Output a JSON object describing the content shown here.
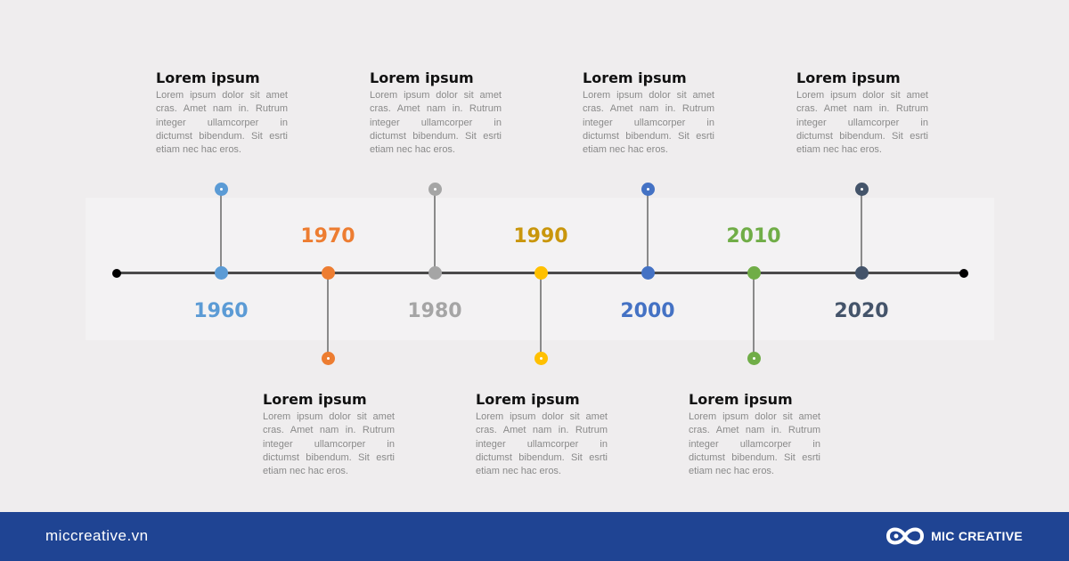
{
  "timeline": {
    "events": [
      {
        "year": "1960",
        "color": "#5b9bd5",
        "title": "Lorem ipsum",
        "text": "Lorem ipsum dolor sit amet cras. Amet nam in. Rutrum integer ullamcorper in dictumst bibendum. Sit esrti etiam nec hac eros."
      },
      {
        "year": "1970",
        "color": "#ed7d31",
        "title": "Lorem ipsum",
        "text": "Lorem ipsum dolor sit amet cras. Amet nam in. Rutrum integer ullamcorper in dictumst bibendum. Sit esrti etiam nec hac eros."
      },
      {
        "year": "1980",
        "color": "#a5a5a5",
        "title": "Lorem ipsum",
        "text": "Lorem ipsum dolor sit amet cras. Amet nam in. Rutrum integer ullamcorper in dictumst bibendum. Sit esrti etiam nec hac eros."
      },
      {
        "year": "1990",
        "color": "#ffc000",
        "year_color": "#c9960c",
        "title": "Lorem ipsum",
        "text": "Lorem ipsum dolor sit amet cras. Amet nam in. Rutrum integer ullamcorper in dictumst bibendum. Sit esrti etiam nec hac eros."
      },
      {
        "year": "2000",
        "color": "#4472c4",
        "title": "Lorem ipsum",
        "text": "Lorem ipsum dolor sit amet cras. Amet nam in. Rutrum integer ullamcorper in dictumst bibendum. Sit esrti etiam nec hac eros."
      },
      {
        "year": "2010",
        "color": "#70ad47",
        "title": "Lorem ipsum",
        "text": "Lorem ipsum dolor sit amet cras. Amet nam in. Rutrum integer ullamcorper in dictumst bibendum. Sit esrti etiam nec hac eros."
      },
      {
        "year": "2020",
        "color": "#44546a",
        "title": "Lorem ipsum",
        "text": "Lorem ipsum dolor sit amet cras. Amet nam in. Rutrum integer ullamcorper in dictumst bibendum. Sit esrti etiam nec hac eros."
      }
    ]
  },
  "footer": {
    "site": "miccreative.vn",
    "brand": "MIC CREATIVE",
    "logo_icon": "infinity-loop-icon"
  }
}
